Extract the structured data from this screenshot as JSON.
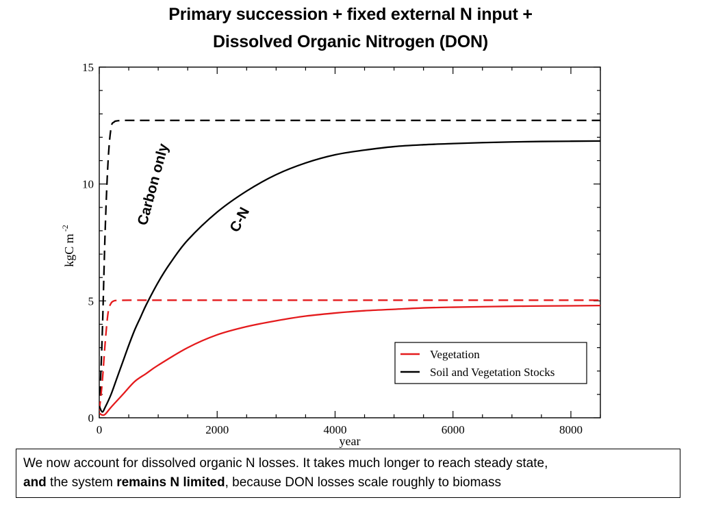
{
  "slide": {
    "title_line1": "Primary succession + fixed external  N input +",
    "title_line2": "Dissolved Organic Nitrogen (DON)"
  },
  "caption": {
    "part1": "We now account for dissolved organic N losses. It takes much longer to reach steady state,",
    "part2": "and",
    "part3": " the system ",
    "part4": "remains N limited",
    "part5": ", because DON losses scale roughly to biomass"
  },
  "annotations": {
    "carbon_only": "Carbon only",
    "cn": "C-N"
  },
  "colors": {
    "vegetation": "#e41a1c",
    "soil_veg": "#000000"
  },
  "chart_data": {
    "type": "line",
    "xlabel": "year",
    "ylabel": "kgC m",
    "ylabel_sup": "-2",
    "xlim": [
      0,
      8500
    ],
    "ylim": [
      0,
      15
    ],
    "xticks": [
      0,
      2000,
      4000,
      6000,
      8000
    ],
    "xtick_labels": [
      "0",
      "2000",
      "4000",
      "6000",
      "8000"
    ],
    "yticks": [
      0,
      5,
      10,
      15
    ],
    "ytick_labels": [
      "0",
      "5",
      "10",
      "15"
    ],
    "grid": false,
    "legend": {
      "placement": "bottom-right",
      "entries": [
        {
          "label": "Vegetation",
          "color": "#e41a1c"
        },
        {
          "label": "Soil and Vegetation Stocks",
          "color": "#000000"
        }
      ]
    },
    "series": [
      {
        "name": "Soil and Vegetation Stocks",
        "style": "dashed",
        "color": "#000000",
        "x": [
          0,
          50,
          100,
          150,
          200,
          250,
          300,
          400,
          600,
          1000,
          2000,
          4000,
          6000,
          8500
        ],
        "y": [
          0.3,
          3.5,
          8.0,
          11.0,
          12.4,
          12.65,
          12.7,
          12.72,
          12.72,
          12.72,
          12.72,
          12.72,
          12.72,
          12.72
        ]
      },
      {
        "name": "Vegetation",
        "style": "dashed",
        "color": "#e41a1c",
        "x": [
          0,
          50,
          100,
          150,
          200,
          250,
          300,
          500,
          1000,
          2000,
          4000,
          6000,
          8500
        ],
        "y": [
          0.3,
          1.5,
          3.2,
          4.5,
          4.9,
          5.0,
          5.02,
          5.03,
          5.03,
          5.03,
          5.03,
          5.03,
          5.03
        ]
      },
      {
        "name": "Soil and Vegetation Stocks",
        "style": "solid",
        "color": "#000000",
        "x": [
          0,
          50,
          100,
          200,
          300,
          400,
          500,
          600,
          700,
          800,
          1000,
          1200,
          1500,
          2000,
          2500,
          3000,
          3500,
          4000,
          4500,
          5000,
          5500,
          6000,
          6500,
          7000,
          7500,
          8000,
          8500
        ],
        "y": [
          0.5,
          0.25,
          0.45,
          1.0,
          1.7,
          2.4,
          3.1,
          3.75,
          4.3,
          4.85,
          5.8,
          6.6,
          7.6,
          8.8,
          9.7,
          10.4,
          10.9,
          11.25,
          11.45,
          11.6,
          11.68,
          11.73,
          11.77,
          11.8,
          11.82,
          11.83,
          11.84
        ]
      },
      {
        "name": "Vegetation",
        "style": "solid",
        "color": "#e41a1c",
        "x": [
          0,
          50,
          100,
          200,
          400,
          600,
          800,
          1000,
          1500,
          2000,
          2500,
          3000,
          3500,
          4000,
          4500,
          5000,
          5500,
          6000,
          7000,
          8000,
          8500
        ],
        "y": [
          0.2,
          0.12,
          0.15,
          0.45,
          1.0,
          1.55,
          1.9,
          2.25,
          3.0,
          3.55,
          3.9,
          4.15,
          4.35,
          4.48,
          4.58,
          4.64,
          4.7,
          4.73,
          4.77,
          4.79,
          4.8
        ]
      }
    ]
  }
}
